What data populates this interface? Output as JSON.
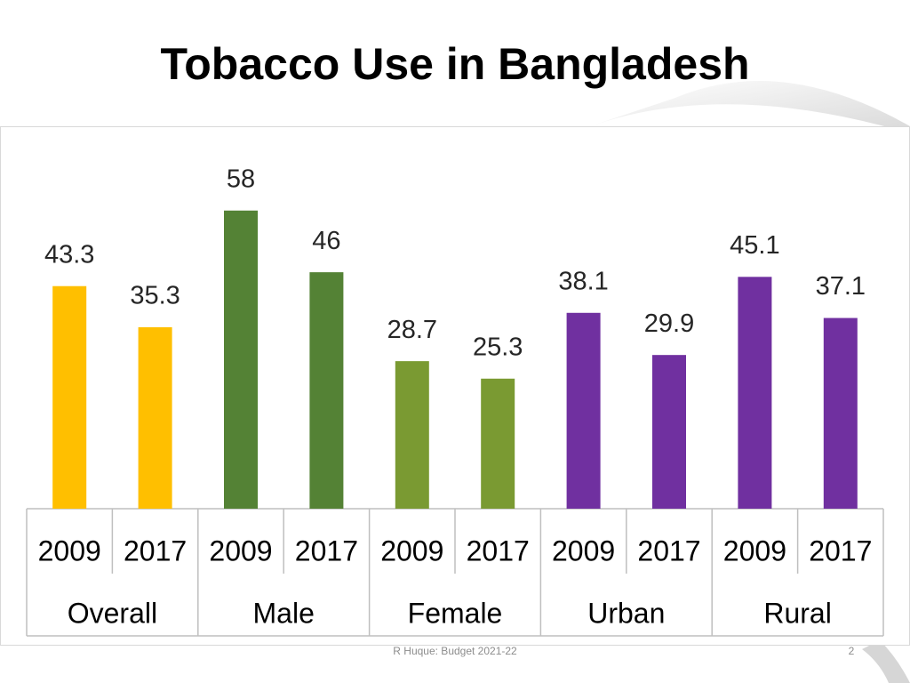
{
  "chart_data": {
    "type": "bar",
    "title": "Tobacco Use in Bangladesh",
    "groups": [
      {
        "name": "Overall",
        "color": "#ffbf00",
        "categories": [
          "2009",
          "2017"
        ],
        "values": [
          43.3,
          35.3
        ]
      },
      {
        "name": "Male",
        "color": "#548235",
        "categories": [
          "2009",
          "2017"
        ],
        "values": [
          58,
          46
        ]
      },
      {
        "name": "Female",
        "color": "#7a9a32",
        "categories": [
          "2009",
          "2017"
        ],
        "values": [
          28.7,
          25.3
        ]
      },
      {
        "name": "Urban",
        "color": "#7030a0",
        "categories": [
          "2009",
          "2017"
        ],
        "values": [
          38.1,
          29.9
        ]
      },
      {
        "name": "Rural",
        "color": "#7030a0",
        "categories": [
          "2009",
          "2017"
        ],
        "values": [
          45.1,
          37.1
        ]
      }
    ]
  },
  "footer": {
    "text": "R Huque: Budget 2021-22",
    "page": "2"
  }
}
